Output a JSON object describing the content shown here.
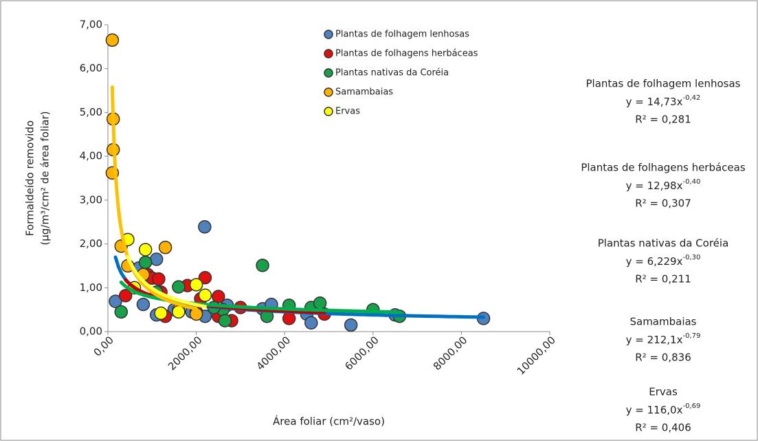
{
  "chart_data": {
    "type": "scatter",
    "xlabel": "Área foliar (cm²/vaso)",
    "ylabel": [
      "Formaldeído removido",
      "(µg/m³/cm² de área foliar)"
    ],
    "xlim": [
      0,
      10000
    ],
    "xticks": [
      {
        "value": 0,
        "label": "0,00"
      },
      {
        "value": 2000,
        "label": "2000,00"
      },
      {
        "value": 4000,
        "label": "4000,00"
      },
      {
        "value": 6000,
        "label": "6000,00"
      },
      {
        "value": 8000,
        "label": "8000,00"
      },
      {
        "value": 10000,
        "label": "10000,00"
      }
    ],
    "ylim": [
      0,
      7
    ],
    "yticks": [
      {
        "value": 0,
        "label": "0,00"
      },
      {
        "value": 1,
        "label": "1,00"
      },
      {
        "value": 2,
        "label": "2,00"
      },
      {
        "value": 3,
        "label": "3,00"
      },
      {
        "value": 4,
        "label": "4,00"
      },
      {
        "value": 5,
        "label": "5,00"
      },
      {
        "value": 6,
        "label": "6,00"
      },
      {
        "value": 7,
        "label": "7,00"
      }
    ],
    "series": [
      {
        "name": "Plantas de folhagem lenhosas",
        "color": "#4f81bd",
        "line_color": "#0070c0",
        "x": [
          171,
          700,
          1100,
          800,
          1100,
          1900,
          2200,
          2190,
          2700,
          3500,
          3700,
          4500,
          4600,
          5500,
          6500,
          8500,
          1500,
          2500
        ],
        "values": [
          0.69,
          1.45,
          1.65,
          0.62,
          0.38,
          0.45,
          0.35,
          2.39,
          0.6,
          0.52,
          0.62,
          0.4,
          0.2,
          0.15,
          0.38,
          0.3,
          0.5,
          0.45
        ],
        "trendline": {
          "a": 14.73,
          "b": -0.42,
          "equation": "y = 14,73x",
          "exponent": "-0,42",
          "r2": "R² = 0,281"
        }
      },
      {
        "name": "Plantas de folhagens herbáceas",
        "color": "#e01010",
        "line_color": "#c00000",
        "x": [
          400,
          900,
          1000,
          1150,
          1200,
          1800,
          2100,
          2200,
          2500,
          2500,
          2800,
          3000,
          4100,
          4900,
          1300,
          2000
        ],
        "values": [
          0.82,
          1.3,
          1.22,
          1.2,
          0.9,
          1.05,
          0.75,
          1.23,
          0.8,
          0.35,
          0.25,
          0.55,
          0.3,
          0.4,
          0.35,
          0.45
        ],
        "trendline": {
          "a": 12.98,
          "b": -0.4,
          "equation": "y = 12,98x",
          "exponent": "-0,40",
          "r2": "R² = 0,307"
        }
      },
      {
        "name": "Plantas nativas da Coréia",
        "color": "#1aa04a",
        "line_color": "#00b050",
        "x": [
          300,
          850,
          1100,
          1600,
          2600,
          2650,
          3500,
          3600,
          4100,
          4600,
          4800,
          6000,
          6600,
          2400
        ],
        "values": [
          0.45,
          1.58,
          0.9,
          1.02,
          0.5,
          0.25,
          1.51,
          0.35,
          0.6,
          0.55,
          0.65,
          0.5,
          0.35,
          0.55
        ],
        "trendline": {
          "a": 6.229,
          "b": -0.3,
          "equation": "y = 6,229x",
          "exponent": "-0,30",
          "r2": "R² = 0,211"
        }
      },
      {
        "name": "Samambaias",
        "color": "#ffb300",
        "line_color": "#ffc000",
        "x": [
          100,
          120,
          120,
          100,
          300,
          450,
          1300,
          2000,
          1600,
          800
        ],
        "values": [
          6.65,
          4.85,
          4.15,
          3.62,
          1.95,
          1.5,
          1.92,
          0.4,
          0.5,
          1.3
        ],
        "trendline": {
          "a": 212.1,
          "b": -0.79,
          "equation": "y = 212,1x",
          "exponent": "-0,79",
          "r2": "R² = 0,836"
        }
      },
      {
        "name": "Ervas",
        "color": "#ffff00",
        "line_color": "#ffff40",
        "x": [
          450,
          850,
          2000,
          2200,
          1200,
          1600,
          600
        ],
        "values": [
          2.1,
          1.87,
          1.07,
          0.83,
          0.42,
          0.45,
          1.0
        ],
        "trendline": {
          "a": 116.0,
          "b": -0.69,
          "equation": "y = 116,0x",
          "exponent": "-0,69",
          "r2": "R² = 0,406"
        }
      }
    ]
  }
}
